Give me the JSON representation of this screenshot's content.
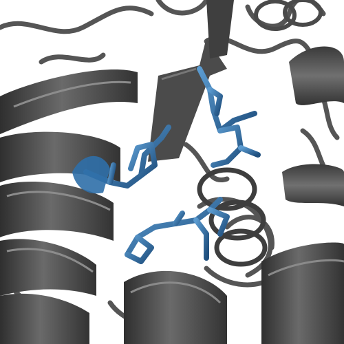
{
  "colors": {
    "background": "#ffffff",
    "protein_dark": "#3a3a3a",
    "protein_mid": "#575757",
    "protein_light": "#7a7a7a",
    "protein_highlight": "#9a9a9a",
    "ligand_blue": "#2f6fa8",
    "ligand_blue_light": "#5b9bd0",
    "ligand_blue_dark": "#1f4f7e"
  },
  "scene": {
    "kind": "protein-ribbon-render",
    "elements": [
      "alpha-helix-ribbons",
      "beta-sheet-arrow",
      "coil-loops",
      "ligand-stick-models"
    ]
  }
}
